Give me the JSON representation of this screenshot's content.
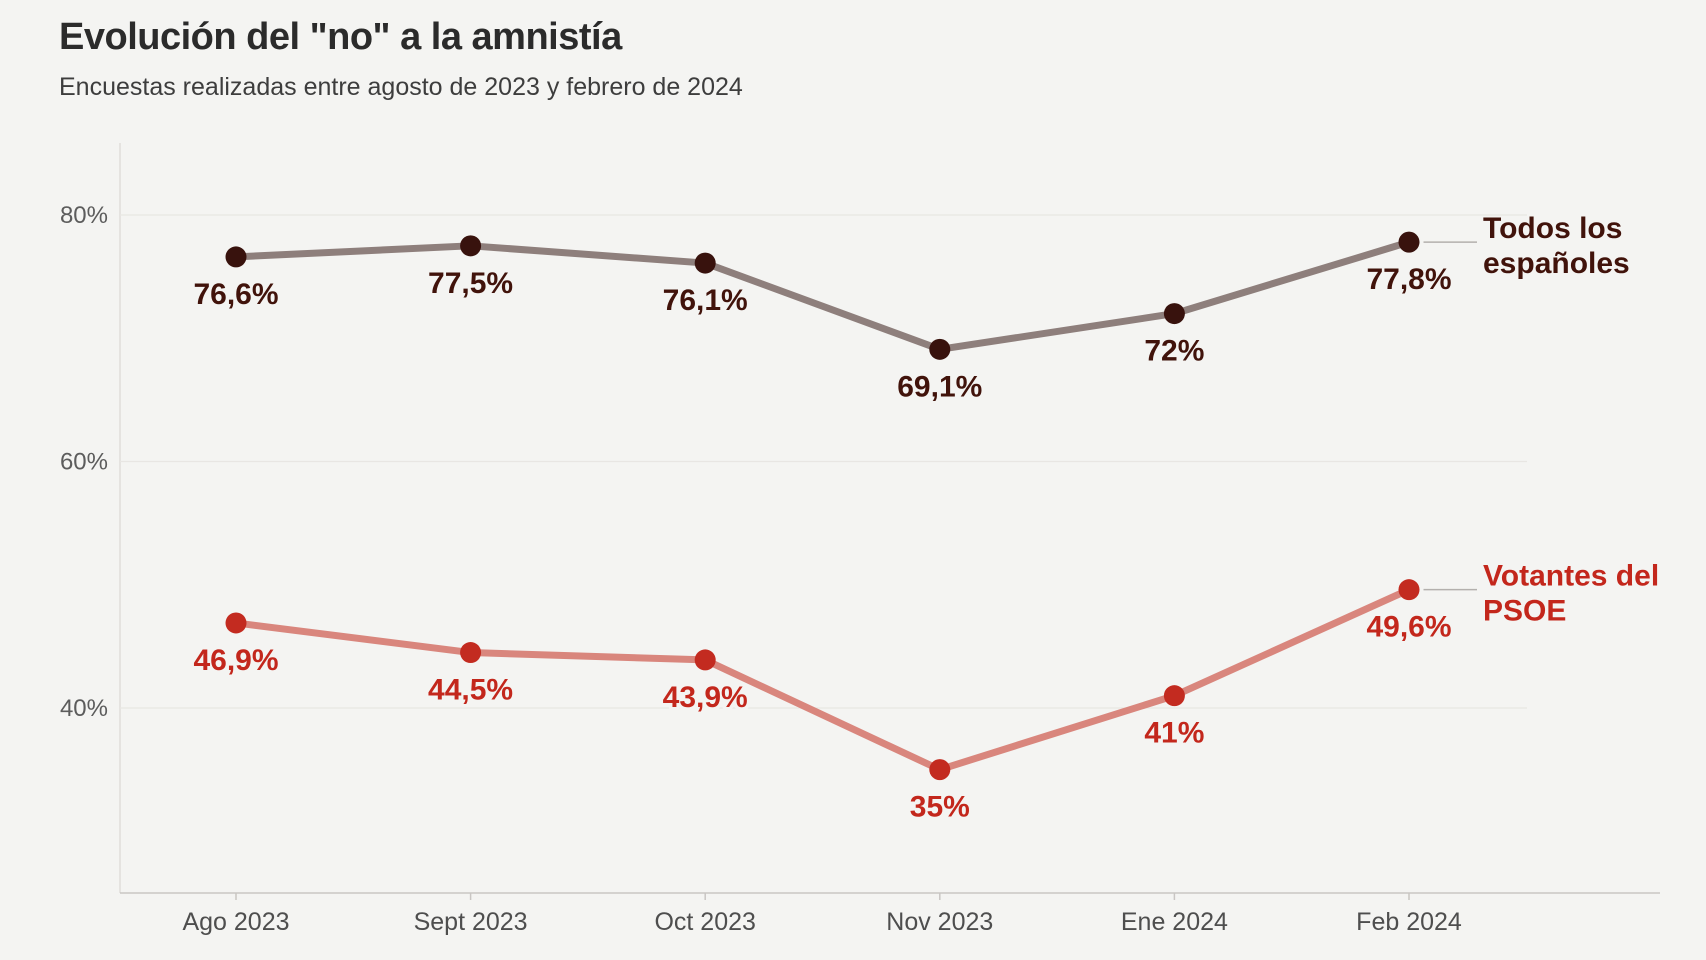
{
  "header": {
    "title": "Evolución del \"no\" a la amnistía",
    "subtitle": "Encuestas realizadas entre agosto de 2023 y febrero de 2024"
  },
  "chart_data": {
    "type": "line",
    "title": "Evolución del \"no\" a la amnistía",
    "subtitle": "Encuestas realizadas entre agosto de 2023 y febrero de 2024",
    "categories": [
      "Ago 2023",
      "Sept 2023",
      "Oct 2023",
      "Nov 2023",
      "Ene 2024",
      "Feb 2024"
    ],
    "series": [
      {
        "name": "Todos los españoles",
        "name_lines": [
          "Todos los",
          "españoles"
        ],
        "values": [
          76.6,
          77.5,
          76.1,
          69.1,
          72,
          77.8
        ],
        "point_labels": [
          "76,6%",
          "77,5%",
          "76,1%",
          "69,1%",
          "72%",
          "77,8%"
        ],
        "line_color": "#8e7f7c",
        "dot_color": "#38120d",
        "label_color": "#41130b"
      },
      {
        "name": "Votantes del PSOE",
        "name_lines": [
          "Votantes del",
          "PSOE"
        ],
        "values": [
          46.9,
          44.5,
          43.9,
          35,
          41,
          49.6
        ],
        "point_labels": [
          "46,9%",
          "44,5%",
          "43,9%",
          "35%",
          "41%",
          "49,6%"
        ],
        "line_color": "#d9867d",
        "dot_color": "#c32b20",
        "label_color": "#c3271c"
      }
    ],
    "y_axis": {
      "tick_labels": [
        "80%",
        "60%",
        "40%"
      ],
      "tick_values": [
        80,
        60,
        40
      ],
      "ylim": [
        25,
        86
      ],
      "grid": "horizontal"
    },
    "x_axis": {
      "tick_labels": [
        "Ago 2023",
        "Sept 2023",
        "Oct 2023",
        "Nov 2023",
        "Ene 2024",
        "Feb 2024"
      ]
    },
    "legend_position": "right-inline-labels",
    "colors": {
      "background": "#f4f4f2",
      "gridline": "#e8e6e3",
      "axis_line": "#c9c6c3",
      "y_tick_text": "#5c5c5c",
      "x_tick_text": "#4e4e4e",
      "leader_line": "#b3b0ad"
    }
  }
}
